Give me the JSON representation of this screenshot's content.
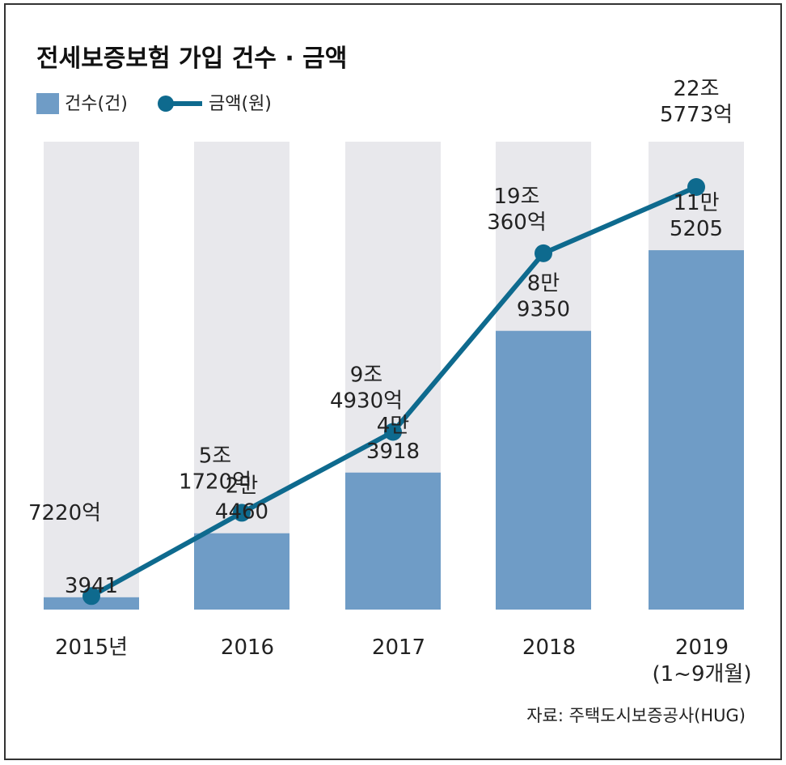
{
  "chart_data": {
    "type": "bar+line",
    "title": "전세보증보험 가입 건수 · 금액",
    "categories": [
      "2015년",
      "2016",
      "2017",
      "2018",
      "2019"
    ],
    "category_sublabels": [
      "",
      "",
      "",
      "",
      "(1~9개월)"
    ],
    "series": [
      {
        "name": "건수(건)",
        "type": "bar",
        "values": [
          3941,
          24460,
          43918,
          89350,
          115205
        ],
        "labels": [
          [
            "3941"
          ],
          [
            "2만",
            "4460"
          ],
          [
            "4만",
            "3918"
          ],
          [
            "8만",
            "9350"
          ],
          [
            "11만",
            "5205"
          ]
        ]
      },
      {
        "name": "금액(원)",
        "type": "line",
        "unit": "억",
        "values": [
          7220,
          51720,
          94930,
          190360,
          225773
        ],
        "labels": [
          [
            "7220억"
          ],
          [
            "5조",
            "1720억"
          ],
          [
            "9조",
            "4930억"
          ],
          [
            "19조",
            "360억"
          ],
          [
            "22조",
            "5773억"
          ]
        ]
      }
    ],
    "ylim_bar": [
      0,
      150000
    ],
    "ylim_line": [
      0,
      250000
    ],
    "grid": false,
    "legend_position": "top-left",
    "source": "자료: 주택도시보증공사(HUG)"
  },
  "colors": {
    "bar_fill": "#6f9cc6",
    "bar_track": "#e8e8ec",
    "line": "#0e6a8e",
    "text": "#222222",
    "border": "#333333"
  }
}
